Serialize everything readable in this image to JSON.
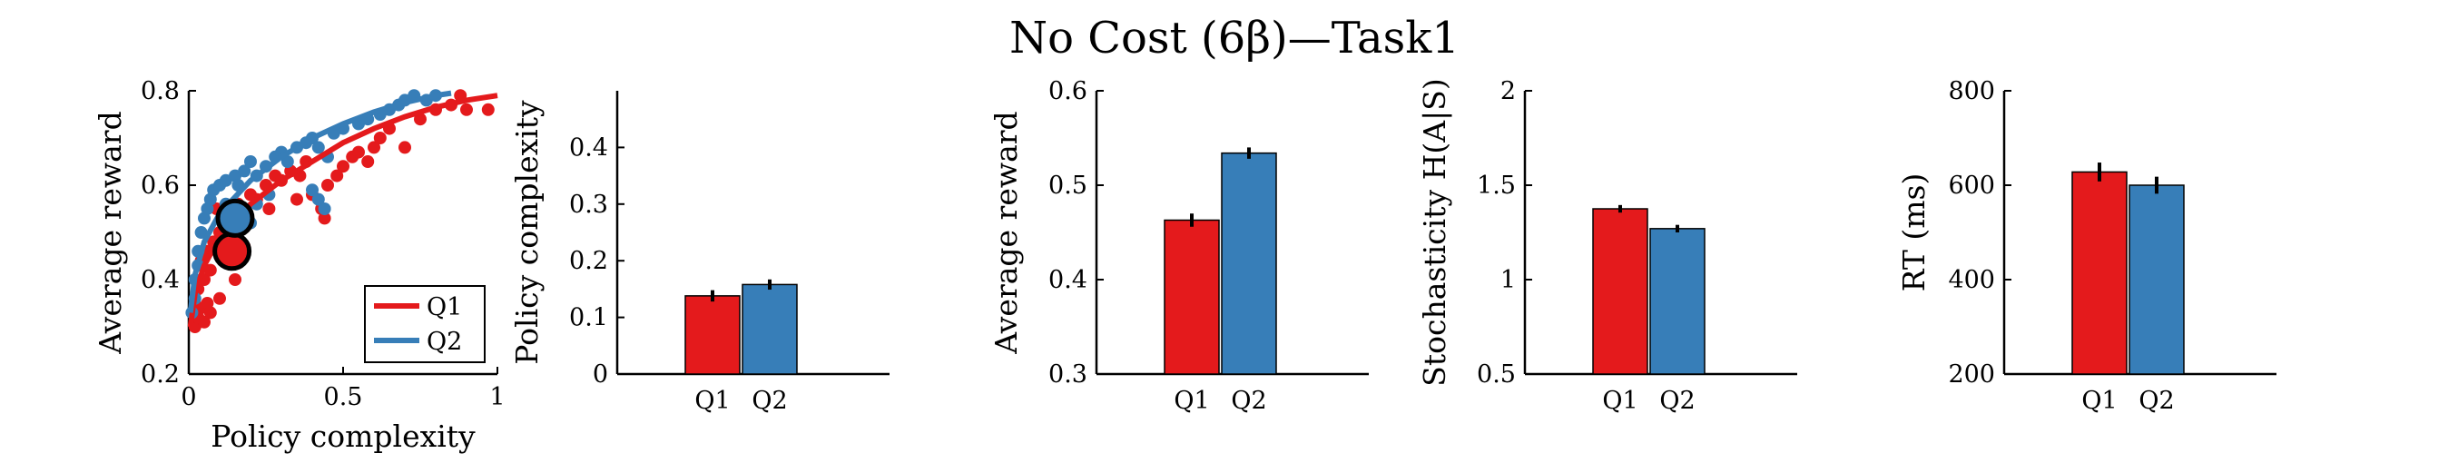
{
  "figure": {
    "title": "No Cost (6β)—Task1"
  },
  "colors": {
    "Q1": "#e41a1c",
    "Q2": "#377eb8",
    "axis": "#000000"
  },
  "chart_data": [
    {
      "type": "scatter",
      "xlabel": "Policy complexity",
      "ylabel": "Average reward",
      "xlim": [
        0,
        1
      ],
      "ylim": [
        0.2,
        0.8
      ],
      "xticks": [
        "0",
        "0.5",
        "1"
      ],
      "yticks": [
        "0.2",
        "0.4",
        "0.6",
        "0.8"
      ],
      "legend": {
        "position": "bottom-right",
        "entries": [
          "Q1",
          "Q2"
        ]
      },
      "series": [
        {
          "name": "Q1",
          "points": [
            [
              0.02,
              0.3
            ],
            [
              0.03,
              0.32
            ],
            [
              0.04,
              0.34
            ],
            [
              0.05,
              0.31
            ],
            [
              0.06,
              0.35
            ],
            [
              0.03,
              0.38
            ],
            [
              0.05,
              0.4
            ],
            [
              0.07,
              0.42
            ],
            [
              0.04,
              0.44
            ],
            [
              0.06,
              0.46
            ],
            [
              0.08,
              0.48
            ],
            [
              0.1,
              0.5
            ],
            [
              0.12,
              0.52
            ],
            [
              0.14,
              0.53
            ],
            [
              0.09,
              0.55
            ],
            [
              0.16,
              0.56
            ],
            [
              0.2,
              0.58
            ],
            [
              0.22,
              0.57
            ],
            [
              0.25,
              0.6
            ],
            [
              0.28,
              0.62
            ],
            [
              0.3,
              0.61
            ],
            [
              0.33,
              0.63
            ],
            [
              0.36,
              0.62
            ],
            [
              0.4,
              0.58
            ],
            [
              0.43,
              0.55
            ],
            [
              0.44,
              0.53
            ],
            [
              0.45,
              0.6
            ],
            [
              0.48,
              0.62
            ],
            [
              0.5,
              0.64
            ],
            [
              0.53,
              0.66
            ],
            [
              0.55,
              0.67
            ],
            [
              0.58,
              0.65
            ],
            [
              0.6,
              0.68
            ],
            [
              0.62,
              0.7
            ],
            [
              0.65,
              0.72
            ],
            [
              0.7,
              0.68
            ],
            [
              0.75,
              0.74
            ],
            [
              0.8,
              0.76
            ],
            [
              0.85,
              0.77
            ],
            [
              0.88,
              0.79
            ],
            [
              0.9,
              0.76
            ],
            [
              0.97,
              0.76
            ],
            [
              0.12,
              0.45
            ],
            [
              0.15,
              0.4
            ],
            [
              0.18,
              0.47
            ],
            [
              0.1,
              0.36
            ],
            [
              0.07,
              0.33
            ],
            [
              0.26,
              0.55
            ],
            [
              0.35,
              0.57
            ],
            [
              0.38,
              0.65
            ]
          ],
          "fit": [
            [
              0.005,
              0.3
            ],
            [
              0.02,
              0.37
            ],
            [
              0.05,
              0.43
            ],
            [
              0.1,
              0.49
            ],
            [
              0.2,
              0.56
            ],
            [
              0.3,
              0.61
            ],
            [
              0.4,
              0.65
            ],
            [
              0.5,
              0.69
            ],
            [
              0.6,
              0.72
            ],
            [
              0.7,
              0.745
            ],
            [
              0.8,
              0.765
            ],
            [
              0.9,
              0.78
            ],
            [
              1.0,
              0.79
            ]
          ],
          "mean": [
            0.14,
            0.46
          ]
        },
        {
          "name": "Q2",
          "points": [
            [
              0.01,
              0.33
            ],
            [
              0.02,
              0.36
            ],
            [
              0.02,
              0.4
            ],
            [
              0.03,
              0.43
            ],
            [
              0.03,
              0.46
            ],
            [
              0.04,
              0.5
            ],
            [
              0.05,
              0.53
            ],
            [
              0.06,
              0.55
            ],
            [
              0.07,
              0.57
            ],
            [
              0.08,
              0.59
            ],
            [
              0.1,
              0.6
            ],
            [
              0.12,
              0.61
            ],
            [
              0.15,
              0.62
            ],
            [
              0.18,
              0.63
            ],
            [
              0.2,
              0.65
            ],
            [
              0.22,
              0.62
            ],
            [
              0.25,
              0.64
            ],
            [
              0.28,
              0.66
            ],
            [
              0.3,
              0.67
            ],
            [
              0.32,
              0.65
            ],
            [
              0.35,
              0.68
            ],
            [
              0.38,
              0.69
            ],
            [
              0.4,
              0.7
            ],
            [
              0.42,
              0.68
            ],
            [
              0.45,
              0.66
            ],
            [
              0.47,
              0.71
            ],
            [
              0.5,
              0.72
            ],
            [
              0.55,
              0.73
            ],
            [
              0.58,
              0.74
            ],
            [
              0.62,
              0.75
            ],
            [
              0.65,
              0.76
            ],
            [
              0.68,
              0.77
            ],
            [
              0.7,
              0.78
            ],
            [
              0.73,
              0.79
            ],
            [
              0.77,
              0.78
            ],
            [
              0.8,
              0.79
            ],
            [
              0.18,
              0.55
            ],
            [
              0.2,
              0.52
            ],
            [
              0.22,
              0.56
            ],
            [
              0.4,
              0.59
            ],
            [
              0.42,
              0.57
            ],
            [
              0.44,
              0.55
            ],
            [
              0.26,
              0.58
            ],
            [
              0.12,
              0.56
            ],
            [
              0.16,
              0.6
            ]
          ],
          "fit": [
            [
              0.005,
              0.33
            ],
            [
              0.02,
              0.41
            ],
            [
              0.05,
              0.48
            ],
            [
              0.1,
              0.54
            ],
            [
              0.2,
              0.61
            ],
            [
              0.3,
              0.66
            ],
            [
              0.4,
              0.7
            ],
            [
              0.5,
              0.73
            ],
            [
              0.6,
              0.755
            ],
            [
              0.7,
              0.775
            ],
            [
              0.8,
              0.79
            ],
            [
              0.85,
              0.795
            ]
          ],
          "mean": [
            0.15,
            0.53
          ]
        }
      ]
    },
    {
      "type": "bar",
      "xlabel": "",
      "ylabel": "Policy complexity",
      "ylim": [
        0,
        0.5
      ],
      "yticks": [
        "0",
        "0.1",
        "0.2",
        "0.3",
        "0.4"
      ],
      "categories": [
        "Q1",
        "Q2"
      ],
      "values": [
        0.138,
        0.158
      ],
      "errors": [
        0.01,
        0.009
      ]
    },
    {
      "type": "bar",
      "xlabel": "",
      "ylabel": "Average reward",
      "ylim": [
        0.3,
        0.6
      ],
      "yticks": [
        "0.3",
        "0.4",
        "0.5",
        "0.6"
      ],
      "categories": [
        "Q1",
        "Q2"
      ],
      "values": [
        0.463,
        0.534
      ],
      "errors": [
        0.007,
        0.006
      ]
    },
    {
      "type": "bar",
      "xlabel": "",
      "ylabel": "Stochasticity H(A|S)",
      "ylim": [
        0.5,
        2
      ],
      "yticks": [
        "0.5",
        "1",
        "1.5",
        "2"
      ],
      "categories": [
        "Q1",
        "Q2"
      ],
      "values": [
        1.375,
        1.27
      ],
      "errors": [
        0.02,
        0.02
      ]
    },
    {
      "type": "bar",
      "xlabel": "",
      "ylabel": "RT (ms)",
      "ylim": [
        200,
        800
      ],
      "yticks": [
        "200",
        "400",
        "600",
        "800"
      ],
      "categories": [
        "Q1",
        "Q2"
      ],
      "values": [
        628,
        600
      ],
      "errors": [
        20,
        18
      ]
    }
  ]
}
